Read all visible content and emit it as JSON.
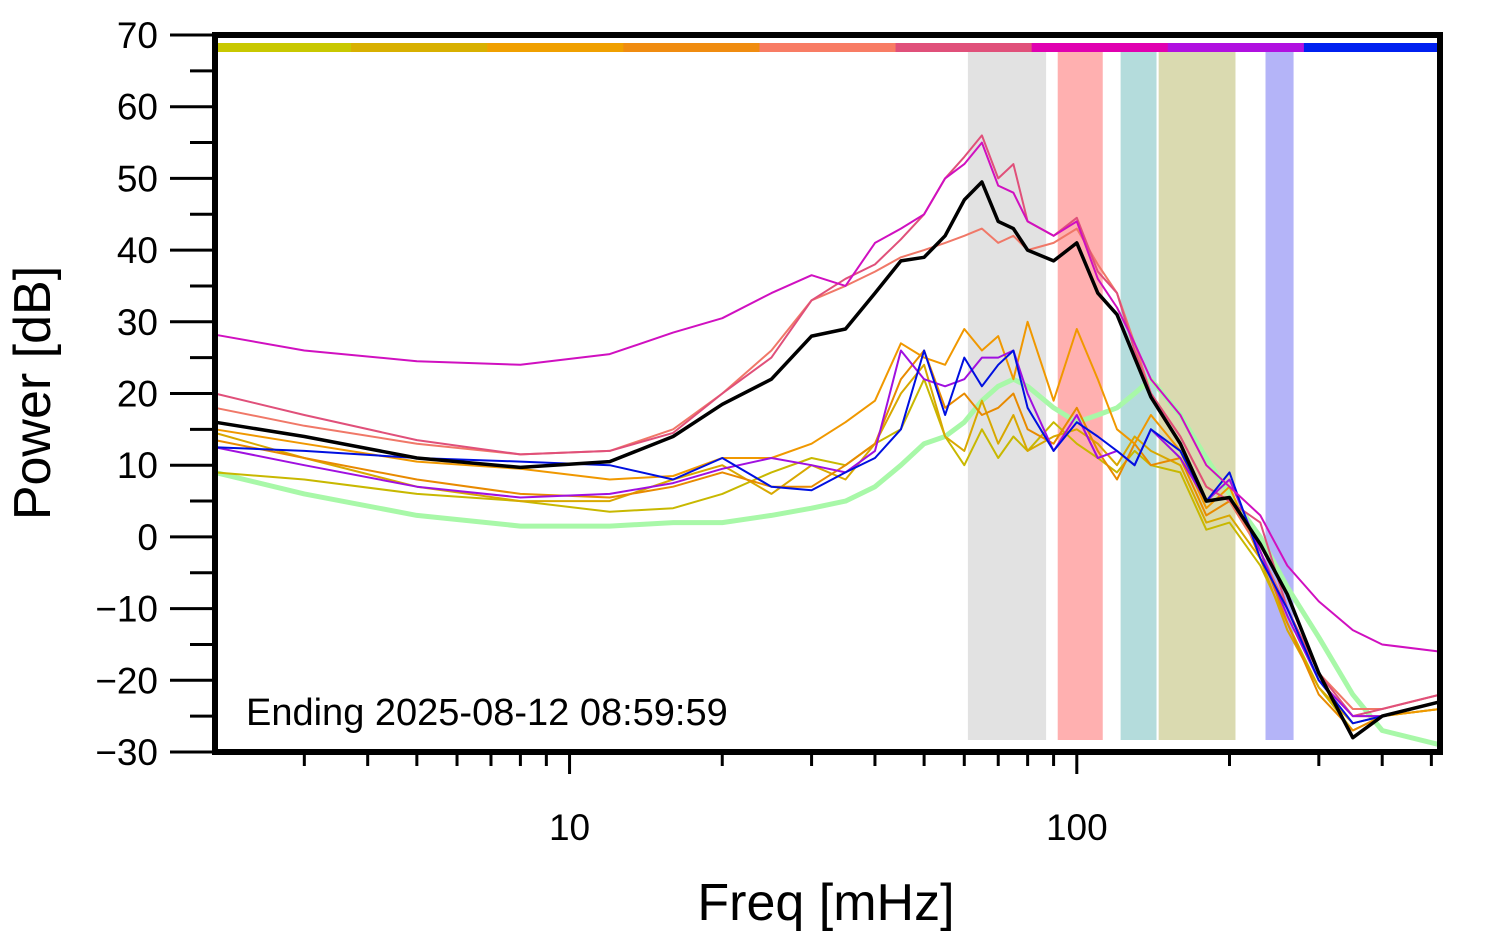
{
  "chart_data": {
    "type": "line",
    "xlabel": "Freq [mHz]",
    "ylabel": "Power [dB]",
    "annotation": "Ending 2025-08-12 08:59:59",
    "log_x": true,
    "xlim": [
      2,
      520
    ],
    "ylim": [
      -30,
      70
    ],
    "xticks": [
      10,
      100
    ],
    "xminorticks": [
      3,
      4,
      5,
      6,
      7,
      8,
      9,
      20,
      30,
      40,
      50,
      60,
      70,
      80,
      90,
      200,
      300,
      400,
      500
    ],
    "yticks": [
      {
        "value": -30,
        "label": "−30"
      },
      {
        "value": -20,
        "label": "−20"
      },
      {
        "value": -10,
        "label": "−10"
      },
      0,
      10,
      20,
      30,
      40,
      50,
      60,
      70
    ],
    "yminorticks": [
      -25,
      -15,
      -5,
      5,
      15,
      25,
      35,
      45,
      55,
      65
    ],
    "color_bar": [
      "#c8c800",
      "#d8b000",
      "#f0a000",
      "#f08c10",
      "#f87c64",
      "#e0507a",
      "#e000b0",
      "#b010e0",
      "#0020f0"
    ],
    "bands": [
      {
        "x": [
          61,
          87
        ],
        "color": "#e2e2e2"
      },
      {
        "x": [
          91.7,
          112.5
        ],
        "color": "#ffb0b0"
      },
      {
        "x": [
          122,
          143.6
        ],
        "color": "#b4dcdc"
      },
      {
        "x": [
          145,
          205.5
        ],
        "color": "#dadab0"
      },
      {
        "x": [
          235.5,
          267.5
        ],
        "color": "#b4b4f8"
      }
    ],
    "x": [
      2,
      3,
      5,
      8,
      12,
      16,
      20,
      25,
      30,
      35,
      40,
      45,
      50,
      55,
      60,
      65,
      70,
      75,
      80,
      90,
      100,
      110,
      120,
      130,
      140,
      160,
      180,
      200,
      230,
      260,
      300,
      350,
      400,
      520
    ],
    "series": [
      {
        "color": "#a8f8a8",
        "line_width": 5,
        "values": [
          9,
          6,
          3,
          1.5,
          1.5,
          2,
          2,
          3,
          4,
          5,
          7,
          10,
          13,
          14,
          16,
          19,
          21,
          22,
          21,
          18,
          16,
          17,
          18,
          20,
          22,
          17,
          11,
          6,
          0,
          -7,
          -14,
          -22,
          -27,
          -29
        ]
      },
      {
        "color": "#c8b800",
        "line_width": 2,
        "values": [
          9,
          8,
          6,
          5,
          3.5,
          4,
          6,
          9,
          11,
          10,
          13,
          15,
          22,
          14,
          10,
          15,
          11,
          14,
          12,
          16,
          13,
          11,
          9,
          12,
          10,
          9,
          1,
          2,
          -4,
          -12,
          -21,
          -27,
          -25,
          -24
        ]
      },
      {
        "color": "#d8a800",
        "line_width": 2,
        "values": [
          14.5,
          11,
          7,
          5,
          5,
          8,
          10,
          6,
          10,
          8,
          13,
          20,
          24,
          14,
          12,
          19,
          13,
          17,
          12,
          14,
          15,
          13,
          10,
          14,
          12,
          10,
          2,
          3,
          -3,
          -13,
          -21,
          -26,
          -25,
          -24
        ]
      },
      {
        "color": "#e88a00",
        "line_width": 2,
        "values": [
          13.5,
          11,
          8,
          6,
          5.5,
          7,
          9,
          7,
          7,
          10,
          13,
          22,
          26,
          18,
          20,
          17,
          18,
          20,
          15,
          13,
          18,
          12,
          8,
          13,
          10,
          11,
          3,
          5,
          -2,
          -12,
          -22,
          -27,
          -25,
          -23
        ]
      },
      {
        "color": "#f09800",
        "line_width": 2,
        "values": [
          15,
          13,
          10.5,
          9.5,
          8,
          8.5,
          11,
          11,
          13,
          16,
          19,
          27,
          25,
          24,
          29,
          26,
          28,
          22,
          30,
          19,
          29,
          22,
          15,
          13,
          17,
          12,
          4,
          7,
          -3,
          -10,
          -20,
          -25,
          -25,
          -24
        ]
      },
      {
        "color": "#f07868",
        "line_width": 2,
        "values": [
          18,
          15.5,
          13,
          11.5,
          12,
          15,
          20,
          26,
          33,
          35,
          37,
          39,
          40,
          41,
          42,
          43,
          41,
          42,
          40,
          41,
          43,
          38,
          34,
          27,
          20,
          14,
          7,
          5,
          -2,
          -10,
          -19,
          -24,
          -24,
          -22
        ]
      },
      {
        "color": "#e0507a",
        "line_width": 2,
        "values": [
          20,
          17,
          13.5,
          11.5,
          12,
          14.5,
          20,
          25,
          33,
          36,
          38,
          41.5,
          45,
          50,
          53,
          56,
          50,
          52,
          44,
          42,
          44.5,
          37,
          34,
          26,
          20,
          14,
          7,
          5,
          2,
          -10,
          -19,
          -25,
          -24,
          -22
        ]
      },
      {
        "color": "#a010e0",
        "line_width": 2,
        "values": [
          12.5,
          10,
          7,
          5.5,
          6,
          7.5,
          9.5,
          11,
          10,
          9,
          12,
          26,
          22,
          21,
          22,
          25,
          25,
          26,
          20,
          12,
          17,
          11,
          12,
          10,
          15,
          11,
          5,
          8,
          -2,
          -11,
          -20,
          -25,
          -25,
          -23
        ]
      },
      {
        "color": "#0010e0",
        "line_width": 2,
        "values": [
          12.5,
          12,
          11,
          10.5,
          10,
          8,
          11,
          7,
          6.5,
          9,
          11,
          15,
          26,
          17,
          25,
          21,
          24,
          26,
          18,
          12,
          16,
          14,
          12,
          10,
          15,
          12,
          5,
          9,
          -3,
          -10,
          -20,
          -26,
          -25,
          -23
        ]
      },
      {
        "color": "#d010c0",
        "line_width": 2,
        "values": [
          28.2,
          26,
          24.5,
          24,
          25.5,
          28.5,
          30.5,
          34,
          36.5,
          35,
          41,
          43,
          45,
          50,
          52,
          55,
          49,
          48,
          44,
          42,
          44,
          36,
          32,
          27,
          22,
          17,
          10,
          7,
          3,
          -4,
          -9,
          -13,
          -15,
          -16
        ]
      },
      {
        "color": "#000000",
        "line_width": 3.5,
        "values": [
          16,
          14,
          11,
          9.7,
          10.5,
          14,
          18.5,
          22,
          28,
          29,
          34,
          38.5,
          39,
          42,
          47,
          49.5,
          44,
          43,
          40,
          38.5,
          41,
          34,
          31,
          25,
          19.5,
          13,
          5,
          5.5,
          -1,
          -8,
          -19,
          -28,
          -25,
          -23
        ]
      }
    ]
  }
}
